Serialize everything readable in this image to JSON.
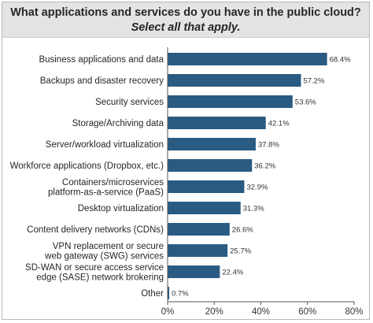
{
  "chart_data": {
    "type": "bar",
    "orientation": "horizontal",
    "title": "What applications and services do you have in the public cloud?",
    "subtitle": "Select all that apply.",
    "categories": [
      [
        "Business applications and data"
      ],
      [
        "Backups and disaster recovery"
      ],
      [
        "Security services"
      ],
      [
        "Storage/Archiving data"
      ],
      [
        "Server/workload virtualization"
      ],
      [
        "Workforce applications (Dropbox, etc.)"
      ],
      [
        "Containers/microservices",
        "platform-as-a-service (PaaS)"
      ],
      [
        "Desktop virtualization"
      ],
      [
        "Content delivery networks (CDNs)"
      ],
      [
        "VPN replacement or secure",
        "web gateway (SWG) services"
      ],
      [
        "SD-WAN or secure access service",
        "edge (SASE) network brokering"
      ],
      [
        "Other"
      ]
    ],
    "values": [
      68.4,
      57.2,
      53.6,
      42.1,
      37.8,
      36.2,
      32.9,
      31.3,
      26.6,
      25.7,
      22.4,
      0.7
    ],
    "value_labels": [
      "68.4%",
      "57.2%",
      "53.6%",
      "42.1%",
      "37.8%",
      "36.2%",
      "32.9%",
      "31.3%",
      "26.6%",
      "25.7%",
      "22.4%",
      "0.7%"
    ],
    "xlim": [
      0,
      80
    ],
    "xticks": [
      0,
      20,
      40,
      60,
      80
    ],
    "xtick_labels": [
      "0%",
      "20%",
      "40%",
      "60%",
      "80%"
    ],
    "grid": false,
    "colors": {
      "bar": "#2a5b82",
      "axis": "#555555"
    }
  }
}
